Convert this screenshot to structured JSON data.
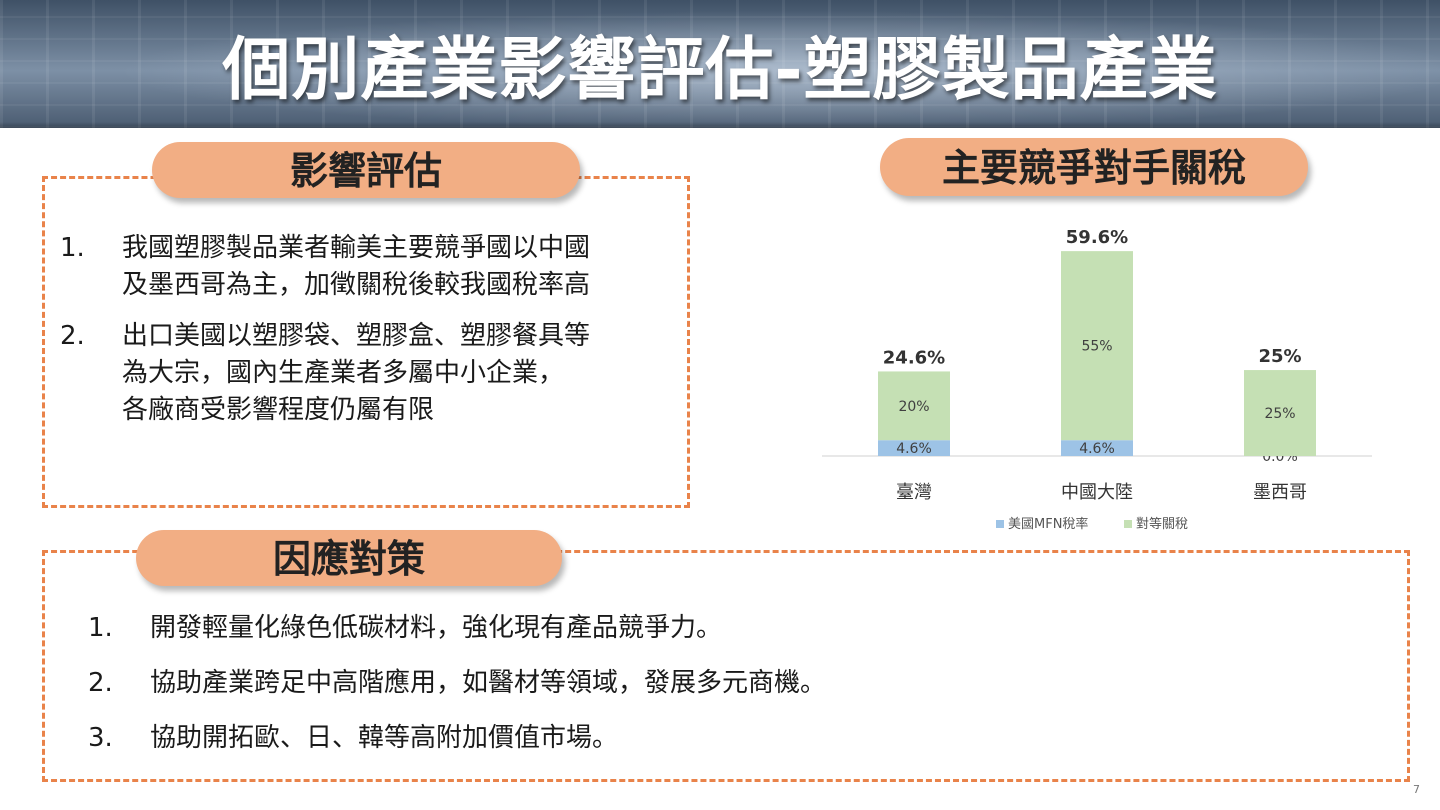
{
  "header": {
    "title": "個別產業影響評估-塑膠製品產業"
  },
  "impact": {
    "heading": "影響評估",
    "items": [
      {
        "num": "1.",
        "text": "我國塑膠製品業者輸美主要競爭國以中國\n及墨西哥為主，加徵關稅後較我國稅率高"
      },
      {
        "num": "2.",
        "text": "出口美國以塑膠袋、塑膠盒、塑膠餐具等\n為大宗，國內生產業者多屬中小企業，\n各廠商受影響程度仍屬有限"
      }
    ]
  },
  "competitors": {
    "heading": "主要競爭對手關稅"
  },
  "response": {
    "heading": "因應對策",
    "items": [
      {
        "num": "1.",
        "text": "開發輕量化綠色低碳材料，強化現有產品競爭力。"
      },
      {
        "num": "2.",
        "text": "協助產業跨足中高階應用，如醫材等領域，發展多元商機。"
      },
      {
        "num": "3.",
        "text": "協助開拓歐、日、韓等高附加價值市場。"
      }
    ]
  },
  "chart_data": {
    "type": "bar",
    "stacked": true,
    "categories": [
      "臺灣",
      "中國大陸",
      "墨西哥"
    ],
    "series": [
      {
        "name": "美國MFN稅率",
        "values": [
          4.6,
          4.6,
          0.0
        ],
        "labels": [
          "4.6%",
          "4.6%",
          "0.0%"
        ],
        "color": "#9dc3e6"
      },
      {
        "name": "對等關稅",
        "values": [
          20,
          55,
          25
        ],
        "labels": [
          "20%",
          "55%",
          "25%"
        ],
        "color": "#c5e0b4"
      }
    ],
    "totals": [
      24.6,
      59.6,
      25
    ],
    "total_labels": [
      "24.6%",
      "59.6%",
      "25%"
    ],
    "legend_position": "bottom",
    "grid": false
  },
  "footer": {
    "page_number": "7"
  }
}
